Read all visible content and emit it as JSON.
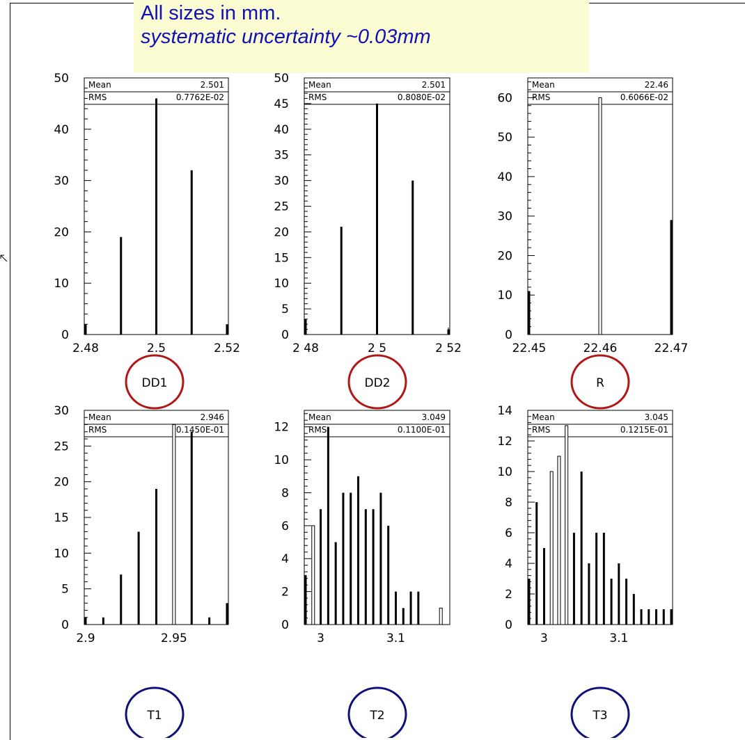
{
  "note": {
    "line1": "All sizes in mm.",
    "line2": "systematic uncertainty ~0.03mm"
  },
  "colors": {
    "note_background": "#fcfcd2",
    "note_text": "#1010b8",
    "circle_top_row": "#b01818",
    "circle_bottom_row": "#10107a"
  },
  "chart_data": [
    {
      "type": "bar",
      "label": "DD1",
      "xlim": [
        2.48,
        2.52
      ],
      "ylim": [
        0,
        50
      ],
      "x_ticks": [
        2.48,
        2.5,
        2.52
      ],
      "x_tick_labels": [
        "2.48",
        "2.5",
        "2.52"
      ],
      "y_ticks": [
        0,
        10,
        20,
        30,
        40,
        50
      ],
      "y_tick_labels": [
        "0",
        "10",
        "20",
        "30",
        "40",
        "50"
      ],
      "stats": {
        "mean_label": "Mean",
        "mean": "2.501",
        "rms_label": "RMS",
        "rms": "0.7762E-02"
      },
      "x": [
        2.48,
        2.49,
        2.5,
        2.51,
        2.52
      ],
      "values": [
        2,
        19,
        46,
        32,
        2
      ]
    },
    {
      "type": "bar",
      "label": "DD2",
      "xlim": [
        2.48,
        2.52
      ],
      "ylim": [
        0,
        50
      ],
      "x_ticks": [
        2.48,
        2.5,
        2.52
      ],
      "x_tick_labels": [
        "2 48",
        "2 5",
        "2 52"
      ],
      "y_ticks": [
        0,
        5,
        10,
        15,
        20,
        25,
        30,
        35,
        40,
        45,
        50
      ],
      "y_tick_labels": [
        "0",
        "5",
        "10",
        "15",
        "20",
        "25",
        "30",
        "35",
        "40",
        "45",
        "50"
      ],
      "stats": {
        "mean_label": "Mean",
        "mean": "2.501",
        "rms_label": "RMS",
        "rms": "0.8080E-02"
      },
      "x": [
        2.48,
        2.49,
        2.5,
        2.51,
        2.52
      ],
      "values": [
        3,
        21,
        45,
        30,
        1
      ]
    },
    {
      "type": "bar",
      "label": "R",
      "xlim": [
        22.45,
        22.47
      ],
      "ylim": [
        0,
        65
      ],
      "x_ticks": [
        22.45,
        22.46,
        22.47
      ],
      "x_tick_labels": [
        "22.45",
        "22.46",
        "22.47"
      ],
      "y_ticks": [
        0,
        10,
        20,
        30,
        40,
        50,
        60
      ],
      "y_tick_labels": [
        "0",
        "10",
        "20",
        "30",
        "40",
        "50",
        "60"
      ],
      "stats": {
        "mean_label": "Mean",
        "mean": "22.46",
        "rms_label": "RMS",
        "rms": "0.6066E-02"
      },
      "x": [
        22.45,
        22.46,
        22.47
      ],
      "values": [
        11,
        60,
        29
      ]
    },
    {
      "type": "bar",
      "label": "T1",
      "xlim": [
        2.9,
        2.98
      ],
      "ylim": [
        0,
        30
      ],
      "x_ticks": [
        2.9,
        2.95
      ],
      "x_tick_labels": [
        "2.9",
        "2.95"
      ],
      "y_ticks": [
        0,
        5,
        10,
        15,
        20,
        25,
        30
      ],
      "y_tick_labels": [
        "0",
        "5",
        "10",
        "15",
        "20",
        "25",
        "30"
      ],
      "stats": {
        "mean_label": "Mean",
        "mean": "2.946",
        "rms_label": "RMS",
        "rms": "0.1450E-01"
      },
      "x": [
        2.9,
        2.91,
        2.92,
        2.93,
        2.94,
        2.95,
        2.96,
        2.97,
        2.98
      ],
      "values": [
        1,
        1,
        7,
        13,
        19,
        28,
        27,
        1,
        3
      ]
    },
    {
      "type": "bar",
      "label": "T2",
      "xlim": [
        2.98,
        3.17
      ],
      "ylim": [
        0,
        13
      ],
      "x_ticks": [
        3.0,
        3.1
      ],
      "x_tick_labels": [
        "3",
        "3.1"
      ],
      "y_ticks": [
        0,
        2,
        4,
        6,
        8,
        10,
        12
      ],
      "y_tick_labels": [
        "0",
        "2",
        "4",
        "6",
        "8",
        "10",
        "12"
      ],
      "stats": {
        "mean_label": "Mean",
        "mean": "3.049",
        "rms_label": "RMS",
        "rms": "0.1100E-01"
      },
      "x": [
        2.98,
        2.99,
        3.0,
        3.01,
        3.02,
        3.03,
        3.04,
        3.05,
        3.06,
        3.07,
        3.08,
        3.09,
        3.1,
        3.11,
        3.12,
        3.13,
        3.16
      ],
      "values": [
        3,
        6,
        7,
        12,
        5,
        8,
        8,
        9,
        7,
        7,
        8,
        6,
        2,
        1,
        2,
        2,
        1
      ]
    },
    {
      "type": "bar",
      "label": "T3",
      "xlim": [
        2.98,
        3.17
      ],
      "ylim": [
        0,
        14
      ],
      "x_ticks": [
        3.0,
        3.1
      ],
      "x_tick_labels": [
        "3",
        "3.1"
      ],
      "y_ticks": [
        0,
        2,
        4,
        6,
        8,
        10,
        12,
        14
      ],
      "y_tick_labels": [
        "0",
        "2",
        "4",
        "6",
        "8",
        "10",
        "12",
        "14"
      ],
      "stats": {
        "mean_label": "Mean",
        "mean": "3.045",
        "rms_label": "RMS",
        "rms": "0.1215E-01"
      },
      "x": [
        2.98,
        2.99,
        3.0,
        3.01,
        3.02,
        3.03,
        3.04,
        3.05,
        3.06,
        3.07,
        3.08,
        3.09,
        3.1,
        3.11,
        3.12,
        3.13,
        3.14,
        3.15,
        3.16,
        3.17
      ],
      "values": [
        3,
        8,
        5,
        10,
        11,
        13,
        6,
        10,
        4,
        6,
        6,
        3,
        4,
        3,
        2,
        1,
        1,
        1,
        1,
        1
      ]
    }
  ]
}
